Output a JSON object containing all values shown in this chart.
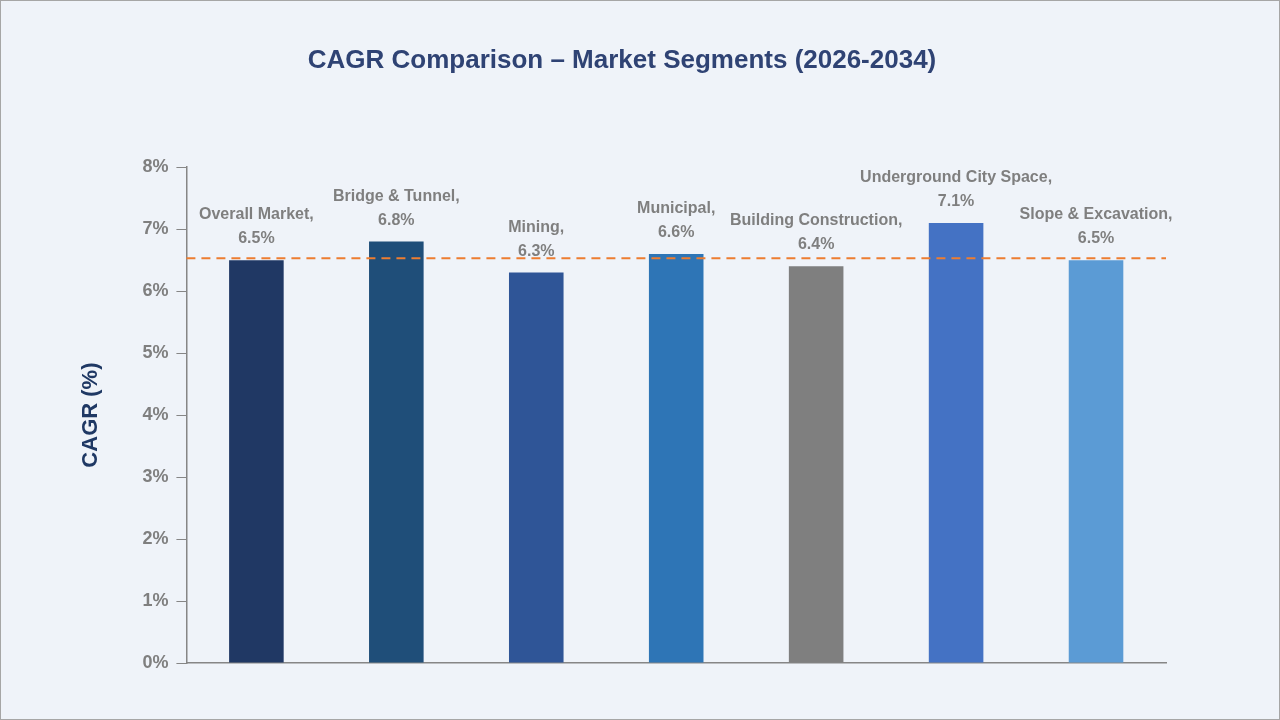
{
  "chart_data": {
    "type": "bar",
    "title": "CAGR Comparison – Market Segments (2026-2034)",
    "ylabel": "CAGR (%)",
    "categories": [
      null,
      null,
      null,
      null,
      null,
      null,
      null
    ],
    "values": [
      6.5,
      6.8,
      6.3,
      6.6,
      6.4,
      7.1,
      6.5
    ],
    "colors": [
      "#203864",
      "#1f4e79",
      "#2f5597",
      "#2e75b6",
      "#7f7f7f",
      "#4472c4",
      "#5b9bd5"
    ],
    "value_labels": [
      "Overall Market, 6.5%",
      "Bridge & Tunnel, 6.8%",
      "Mining, 6.3%",
      "Municipal, 6.6%",
      "Building Construction, 6.4%",
      "Underground City Space, 7.1%",
      "Slope & Excavation, 6.5%"
    ],
    "ylim": [
      0,
      8
    ],
    "yticks": [
      {
        "value": 0,
        "label": "0%"
      },
      {
        "value": 1,
        "label": "1%"
      },
      {
        "value": 2,
        "label": "2%"
      },
      {
        "value": 3,
        "label": "3%"
      },
      {
        "value": 4,
        "label": "4%"
      },
      {
        "value": 5,
        "label": "5%"
      },
      {
        "value": 6,
        "label": "6%"
      },
      {
        "value": 7,
        "label": "7%"
      },
      {
        "value": 8,
        "label": "8%"
      }
    ],
    "ref_lines": [
      {
        "axis": "y",
        "value": 6.53,
        "color": "#ed7d31",
        "line_style": "dashed"
      }
    ],
    "tick_labels": "y"
  }
}
